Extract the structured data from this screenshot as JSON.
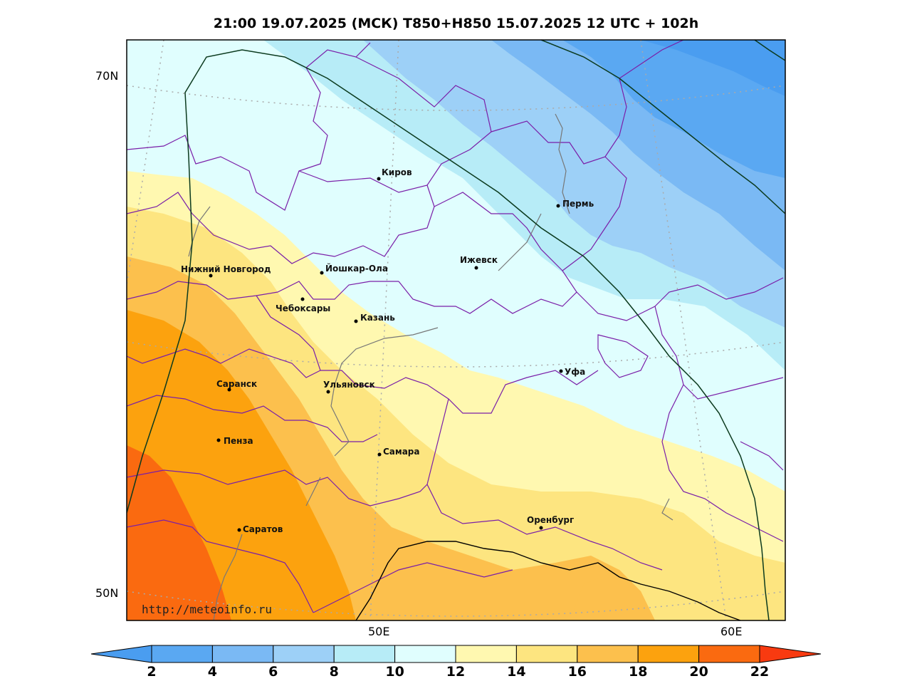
{
  "title": "21:00 19.07.2025 (МСК) T850+H850 15.07.2025 12 UTC + 102h",
  "axes": {
    "lat_labels": [
      "70N",
      "50N"
    ],
    "lon_labels": [
      "50E",
      "60E"
    ]
  },
  "cities": [
    {
      "name": "Киров"
    },
    {
      "name": "Пермь"
    },
    {
      "name": "Нижний Новгород"
    },
    {
      "name": "Йошкар-Ола"
    },
    {
      "name": "Ижевск"
    },
    {
      "name": "Чебоксары"
    },
    {
      "name": "Казань"
    },
    {
      "name": "Уфа"
    },
    {
      "name": "Саранск"
    },
    {
      "name": "Ульяновск"
    },
    {
      "name": "Пенза"
    },
    {
      "name": "Самара"
    },
    {
      "name": "Оренбург"
    },
    {
      "name": "Саратов"
    }
  ],
  "colorbar": {
    "labels": [
      "2",
      "4",
      "6",
      "8",
      "10",
      "12",
      "14",
      "16",
      "18",
      "20",
      "22"
    ],
    "colors": [
      "#4a9df0",
      "#5aa8f2",
      "#7ab9f4",
      "#9dd0f7",
      "#b7ecf7",
      "#e0fefe",
      "#fff8b0",
      "#fde580",
      "#fcc04d",
      "#fca20e",
      "#fa6a10",
      "#f83a10"
    ]
  },
  "watermark": "http://meteoinfo.ru"
}
